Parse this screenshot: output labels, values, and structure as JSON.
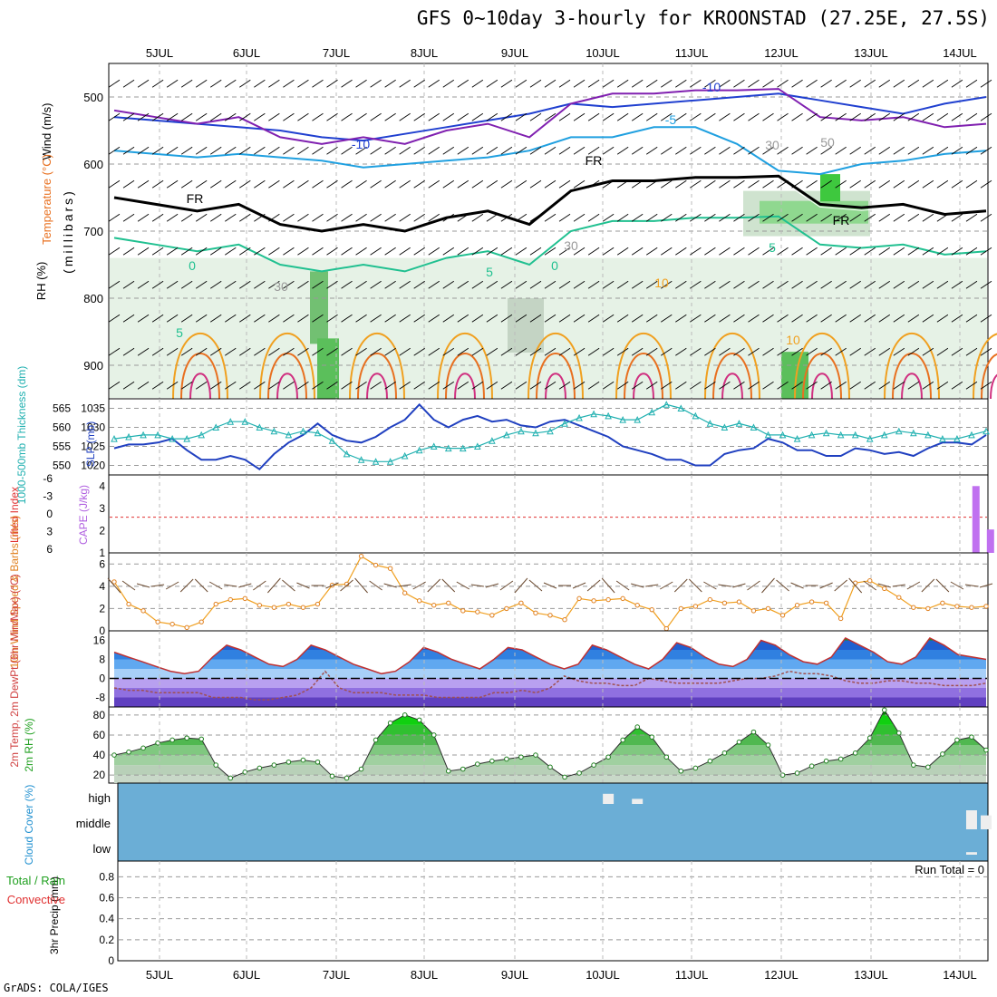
{
  "title": "GFS 0~10day 3-hourly for KROONSTAD (27.25E, 27.5S)",
  "credit": "GrADS: COLA/IGES",
  "dates": [
    "5JUL",
    "6JUL",
    "7JUL",
    "8JUL",
    "9JUL",
    "10JUL",
    "11JUL",
    "12JUL",
    "13JUL",
    "14JUL"
  ],
  "chart_data": [
    {
      "type": "contour",
      "panel": "upper-air",
      "ylabel": "(millibars)",
      "legend_labels": [
        "Wind (m/s)",
        "Temperature (°C)",
        "RH (%)"
      ],
      "y_ticks": [
        500,
        600,
        700,
        800,
        900
      ],
      "ylim": [
        950,
        450
      ],
      "contour_labels": [
        "-10",
        "-5",
        "-10",
        "FR",
        "FR",
        "FR",
        "0",
        "5",
        "5",
        "0",
        "5",
        "10",
        "10",
        "30",
        "30",
        "30",
        "50"
      ],
      "freezing_level_mb": [
        650,
        660,
        670,
        660,
        690,
        700,
        690,
        700,
        680,
        670,
        690,
        640,
        625,
        625,
        620,
        620,
        618,
        660,
        665,
        660,
        675,
        670
      ],
      "temp_minus5_mb": [
        580,
        585,
        590,
        585,
        590,
        595,
        605,
        600,
        595,
        590,
        580,
        560,
        560,
        545,
        545,
        570,
        610,
        615,
        600,
        595,
        585,
        580
      ],
      "temp_minus10_mb": [
        530,
        535,
        540,
        545,
        550,
        560,
        565,
        555,
        545,
        535,
        525,
        510,
        515,
        510,
        505,
        500,
        495,
        505,
        515,
        525,
        510,
        500
      ]
    },
    {
      "type": "line",
      "panel": "slp-thickness",
      "ylabel_left": "1000-500mb Thickness (dm)",
      "ylabel_right": "SLP (mb)",
      "y_ticks_left": [
        550,
        555,
        560,
        565
      ],
      "y_ticks_right": [
        1020,
        1025,
        1030,
        1035
      ],
      "ylim": [
        1017.5,
        1037.5
      ],
      "series": [
        {
          "name": "SLP (mb)",
          "values": [
            1024.5,
            1025.5,
            1025.5,
            1026,
            1027,
            1024,
            1021.5,
            1021.5,
            1022.5,
            1021.5,
            1019,
            1023,
            1026,
            1028,
            1031,
            1028,
            1026.5,
            1026,
            1027.5,
            1030,
            1032,
            1036,
            1032,
            1030,
            1032,
            1033,
            1031.5,
            1032,
            1030.5,
            1030,
            1031.5,
            1032,
            1030.5,
            1029,
            1027.5,
            1025,
            1024,
            1023,
            1021.5,
            1021.5,
            1020,
            1020,
            1023,
            1024,
            1024.5,
            1027,
            1026,
            1024,
            1024,
            1022.5,
            1022.5,
            1024.5,
            1024,
            1023,
            1023.5,
            1022.5,
            1024.5,
            1026,
            1026,
            1025.5,
            1028
          ]
        },
        {
          "name": "1000-500mb Thickness (dm)",
          "values": [
            557,
            557.5,
            558,
            558,
            557,
            557,
            558,
            560,
            561.5,
            561.5,
            560,
            559,
            558,
            559,
            558.5,
            556.5,
            553,
            551.5,
            551,
            551,
            552.5,
            554,
            555,
            554.5,
            554.5,
            555,
            556.5,
            558,
            559,
            558.5,
            559,
            561,
            562.5,
            563.5,
            563,
            562,
            562,
            564,
            566,
            565,
            563,
            561,
            560,
            561,
            560,
            558,
            558,
            557,
            558,
            558.5,
            558,
            558,
            557,
            558,
            559,
            558.5,
            558,
            557,
            557,
            558,
            559
          ]
        }
      ]
    },
    {
      "type": "bar",
      "panel": "cape-lifted-index",
      "ylabel_left": "Lifted Index",
      "ylabel_right": "CAPE (J/kg)",
      "y_ticks_left": [
        "-6",
        "-3",
        "0",
        "3",
        "6"
      ],
      "y_ticks_right": [
        1,
        2,
        3,
        4
      ],
      "ylim": [
        1,
        4.5
      ],
      "dashed_zero_value": 2.6,
      "bars": [
        {
          "time_index": 59.3,
          "value": 4.0
        },
        {
          "time_index": 60.3,
          "value": 2.05
        }
      ]
    },
    {
      "type": "line",
      "panel": "10m-wind",
      "ylabel": "10m Wind Speed & Barbs (m/s)",
      "y_ticks": [
        0,
        2,
        4,
        6
      ],
      "ylim": [
        0,
        7
      ],
      "series": [
        {
          "name": "10m Wind Speed",
          "values": [
            4.4,
            2.4,
            1.8,
            0.8,
            0.6,
            0.3,
            0.8,
            2.4,
            2.8,
            2.9,
            2.3,
            2.1,
            2.4,
            2.1,
            2.4,
            4.1,
            4.2,
            6.7,
            5.9,
            5.6,
            3.4,
            2.7,
            2.3,
            2.5,
            1.8,
            1.7,
            1.4,
            2.0,
            2.5,
            1.6,
            1.4,
            1.0,
            2.9,
            2.7,
            2.8,
            2.9,
            2.3,
            1.9,
            0.2,
            2.0,
            2.2,
            2.8,
            2.5,
            2.6,
            1.8,
            2.0,
            1.4,
            2.3,
            2.6,
            2.5,
            1.1,
            4.3,
            4.5,
            3.8,
            3.0,
            2.1,
            2.0,
            2.5,
            2.2,
            2.1,
            2.2
          ]
        }
      ]
    },
    {
      "type": "area",
      "panel": "2m-temp",
      "ylabel": "2m Temp, 2m DewPt (6hr Min/Max) (°C)",
      "y_ticks": [
        -8,
        0,
        8,
        16
      ],
      "ylim": [
        -12,
        20
      ],
      "series": [
        {
          "name": "2m Temp",
          "values": [
            11,
            9,
            7,
            5,
            3,
            2,
            3,
            9,
            14,
            12,
            9,
            6,
            5,
            8,
            14,
            12,
            9,
            6,
            4,
            2,
            3,
            7,
            13,
            11,
            8,
            6,
            4,
            8,
            13,
            12,
            9,
            6,
            4,
            6,
            14,
            12,
            9,
            6,
            4,
            8,
            15,
            13,
            9,
            6,
            5,
            8,
            16,
            14,
            10,
            7,
            6,
            9,
            17,
            14,
            11,
            7,
            6,
            9,
            17,
            14,
            10,
            9,
            8
          ]
        },
        {
          "name": "2m DewPt",
          "values": [
            -4,
            -5,
            -5,
            -6,
            -6,
            -6,
            -6,
            -8,
            -8,
            -8,
            -9,
            -9,
            -8,
            -7,
            -4,
            3,
            -4,
            -6,
            -6,
            -6,
            -7,
            -7,
            -7,
            -8,
            -8,
            -8,
            -8,
            -6,
            -6,
            -5,
            -6,
            -4,
            1,
            -1,
            -2,
            -2,
            -3,
            -3,
            0,
            -1,
            -2,
            -2,
            -2,
            -2,
            -1,
            0,
            0,
            1,
            3,
            2,
            2,
            1,
            -1,
            -2,
            -2,
            -1,
            -1,
            -2,
            -2,
            -3,
            -3,
            -3,
            -2
          ]
        }
      ]
    },
    {
      "type": "area",
      "panel": "2m-rh",
      "ylabel": "2m RH (%)",
      "y_ticks": [
        20,
        40,
        60,
        80
      ],
      "ylim": [
        12,
        88
      ],
      "series": [
        {
          "name": "2m RH",
          "values": [
            40,
            43,
            47,
            52,
            55,
            57,
            56,
            30,
            17,
            23,
            27,
            30,
            33,
            35,
            33,
            19,
            17,
            26,
            55,
            72,
            80,
            75,
            60,
            24,
            26,
            31,
            34,
            36,
            38,
            40,
            28,
            18,
            22,
            30,
            38,
            55,
            68,
            58,
            38,
            24,
            27,
            34,
            42,
            53,
            63,
            50,
            20,
            22,
            29,
            34,
            36,
            42,
            57,
            85,
            62,
            30,
            28,
            41,
            55,
            58,
            45
          ]
        }
      ]
    },
    {
      "type": "bar",
      "panel": "cloud-cover",
      "ylabel": "Cloud Cover (%)",
      "levels": [
        "high",
        "middle",
        "low"
      ],
      "bars": [
        {
          "level": "high",
          "time_index": 34,
          "value": 40
        },
        {
          "level": "high",
          "time_index": 36,
          "value": 20
        },
        {
          "level": "middle",
          "time_index": 59,
          "value": 75
        },
        {
          "level": "middle",
          "time_index": 60,
          "value": 55
        },
        {
          "level": "low",
          "time_index": 59,
          "value": 10
        },
        {
          "level": "high",
          "time_index": 64,
          "value": 40
        },
        {
          "level": "high",
          "time_index": 66,
          "value": 30
        }
      ]
    },
    {
      "type": "bar",
      "panel": "precip",
      "ylabel": "3hr Precip (mm)",
      "legend_labels": [
        "Total / Rain",
        "Convective"
      ],
      "y_ticks": [
        "0",
        "0.2",
        "0.4",
        "0.6",
        "0.8"
      ],
      "ylim": [
        0,
        0.95
      ],
      "run_total_label": "Run Total = 0",
      "values": []
    }
  ]
}
